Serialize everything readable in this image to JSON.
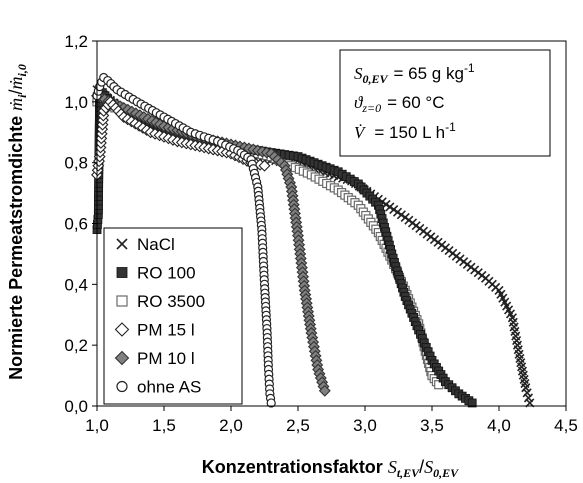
{
  "chart_data": {
    "type": "scatter",
    "title": "",
    "xlabel": "Konzentrationsfaktor St,EV/S0,EV",
    "xlabel_parts": {
      "text": "Konzentrationsfaktor ",
      "sym": "S",
      "sub": "t,EV",
      "sep": "/",
      "sym2": "S",
      "sub2": "0,EV"
    },
    "ylabel": "Normierte Permeatstromdichte ṁi/ṁi,0",
    "ylabel_parts": {
      "text": "Normierte Permeatstromdichte ",
      "sym": "ṁ",
      "sub": "i",
      "sep": "/",
      "sym2": "ṁ",
      "sub2": "i,0"
    },
    "xlim": [
      1.0,
      4.5
    ],
    "ylim": [
      0.0,
      1.2
    ],
    "x_ticks": [
      "1,0",
      "1,5",
      "2,0",
      "2,5",
      "3,0",
      "3,5",
      "4,0",
      "4,5"
    ],
    "y_ticks": [
      "0,0",
      "0,2",
      "0,4",
      "0,6",
      "0,8",
      "1,0",
      "1,2"
    ],
    "grid": false,
    "legend_position": "bottom-left",
    "annotations": [
      {
        "sym": "S",
        "sub": "0,EV",
        "value": "= 65 g kg",
        "sup": "-1"
      },
      {
        "sym": "ϑ",
        "sub": "z=0",
        "value": "= 60 °C",
        "sup": ""
      },
      {
        "sym": "V̇",
        "sub": "",
        "value": "= 150 L h",
        "sup": "-1"
      }
    ],
    "series": [
      {
        "name": "NaCl",
        "marker": "cross",
        "color": "#222222",
        "x": [
          1.0,
          1.2,
          1.5,
          1.8,
          2.0,
          2.3,
          2.6,
          2.9,
          3.1,
          3.3,
          3.6,
          3.9,
          4.0,
          4.1,
          4.15,
          4.2,
          4.23
        ],
        "y": [
          1.04,
          0.97,
          0.91,
          0.87,
          0.84,
          0.81,
          0.78,
          0.74,
          0.68,
          0.62,
          0.52,
          0.42,
          0.38,
          0.29,
          0.17,
          0.06,
          0.01
        ]
      },
      {
        "name": "RO 100",
        "marker": "square-filled",
        "color": "#333333",
        "x": [
          1.0,
          1.01,
          1.02,
          1.1,
          1.3,
          1.6,
          1.9,
          2.2,
          2.5,
          2.8,
          2.95,
          3.1,
          3.2,
          3.3,
          3.4,
          3.5,
          3.6,
          3.7,
          3.8
        ],
        "y": [
          0.58,
          0.63,
          1.04,
          1.0,
          0.95,
          0.89,
          0.86,
          0.84,
          0.82,
          0.77,
          0.73,
          0.66,
          0.5,
          0.36,
          0.25,
          0.15,
          0.08,
          0.04,
          0.01
        ]
      },
      {
        "name": "RO 3500",
        "marker": "square-open",
        "color": "#6a6a6a",
        "x": [
          1.0,
          1.2,
          1.5,
          1.8,
          2.0,
          2.3,
          2.6,
          2.8,
          2.95,
          3.1,
          3.2,
          3.3,
          3.4,
          3.45,
          3.5,
          3.55
        ],
        "y": [
          1.0,
          0.97,
          0.92,
          0.87,
          0.85,
          0.82,
          0.76,
          0.71,
          0.66,
          0.57,
          0.48,
          0.38,
          0.27,
          0.18,
          0.1,
          0.07
        ]
      },
      {
        "name": "PM 15 l",
        "marker": "diamond-open",
        "color": "#222222",
        "x": [
          1.0,
          1.02,
          1.05,
          1.1,
          1.2,
          1.4,
          1.6,
          1.8,
          2.0,
          2.15,
          2.25
        ],
        "y": [
          0.76,
          0.82,
          0.97,
          1.0,
          0.95,
          0.9,
          0.87,
          0.85,
          0.83,
          0.8,
          0.79
        ]
      },
      {
        "name": "PM 10 l",
        "marker": "diamond-filled",
        "color": "#808080",
        "x": [
          1.0,
          1.2,
          1.5,
          1.8,
          2.1,
          2.3,
          2.4,
          2.45,
          2.5,
          2.55,
          2.6,
          2.65,
          2.7
        ],
        "y": [
          1.02,
          0.98,
          0.92,
          0.88,
          0.85,
          0.83,
          0.79,
          0.72,
          0.56,
          0.38,
          0.24,
          0.12,
          0.05
        ]
      },
      {
        "name": "ohne AS",
        "marker": "circle-open",
        "color": "#222222",
        "x": [
          1.0,
          1.02,
          1.05,
          1.08,
          1.15,
          1.3,
          1.5,
          1.7,
          1.9,
          2.05,
          2.15,
          2.2,
          2.23,
          2.25,
          2.27,
          2.28,
          2.29,
          2.3
        ],
        "y": [
          1.02,
          1.05,
          1.08,
          1.07,
          1.04,
          1.0,
          0.95,
          0.9,
          0.87,
          0.84,
          0.81,
          0.72,
          0.58,
          0.4,
          0.24,
          0.12,
          0.04,
          0.01
        ]
      }
    ]
  }
}
